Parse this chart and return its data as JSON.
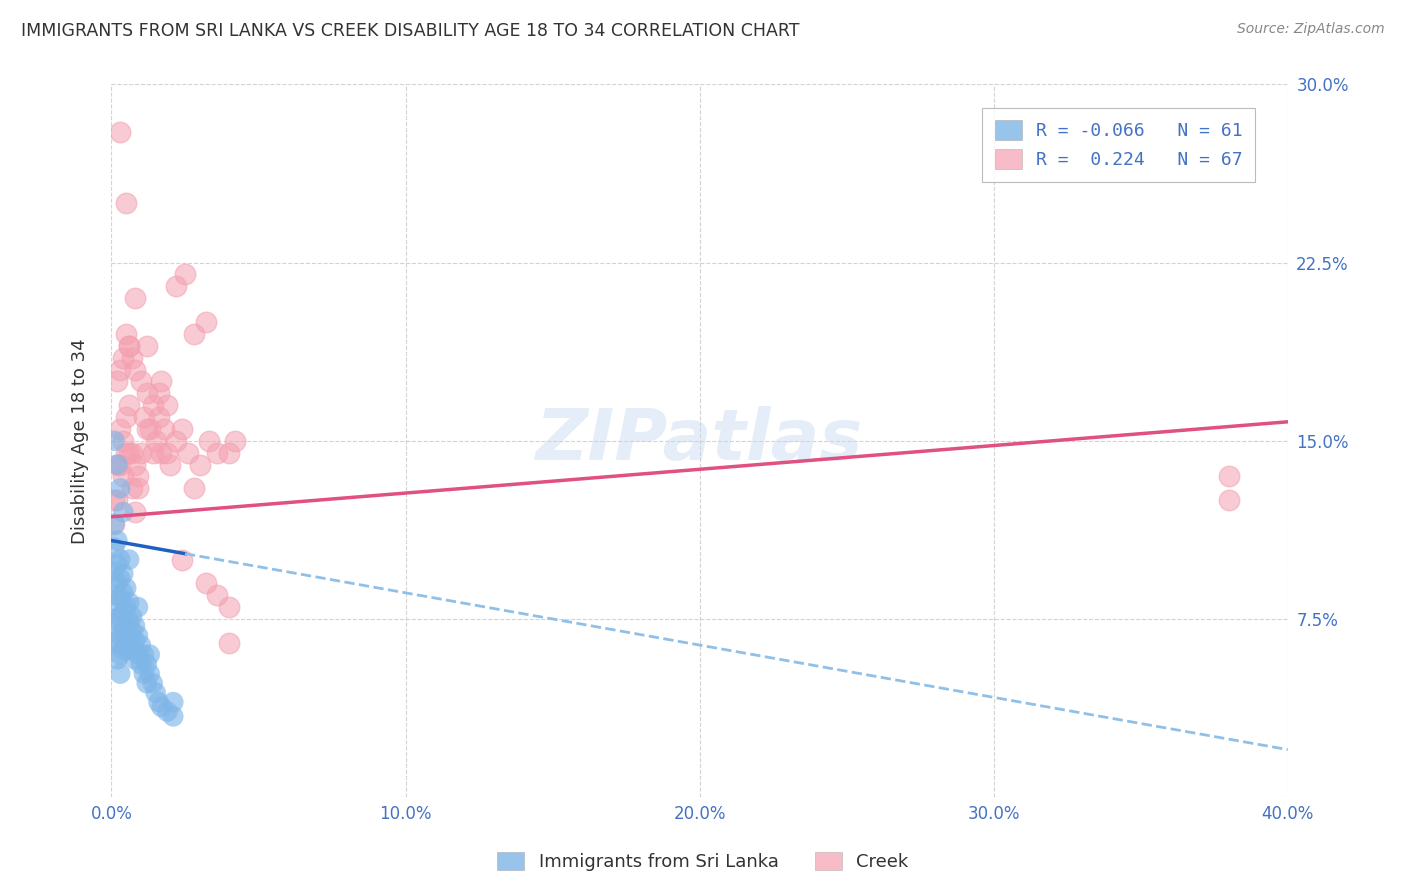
{
  "title": "IMMIGRANTS FROM SRI LANKA VS CREEK DISABILITY AGE 18 TO 34 CORRELATION CHART",
  "source": "Source: ZipAtlas.com",
  "ylabel": "Disability Age 18 to 34",
  "x_label_blue": "Immigrants from Sri Lanka",
  "x_label_pink": "Creek",
  "xlim": [
    0.0,
    0.4
  ],
  "ylim": [
    0.0,
    0.3
  ],
  "xticks": [
    0.0,
    0.1,
    0.2,
    0.3,
    0.4
  ],
  "yticks_right": [
    0.0,
    0.075,
    0.15,
    0.225,
    0.3
  ],
  "ytick_labels_right": [
    "",
    "7.5%",
    "15.0%",
    "22.5%",
    "30.0%"
  ],
  "xtick_labels": [
    "0.0%",
    "10.0%",
    "20.0%",
    "30.0%",
    "40.0%"
  ],
  "R_blue": -0.066,
  "N_blue": 61,
  "R_pink": 0.224,
  "N_pink": 67,
  "dot_color_blue": "#7EB6E8",
  "dot_color_pink": "#F4A0B0",
  "line_color_blue_solid": "#2060C0",
  "line_color_pink": "#E05080",
  "line_color_blue_dash": "#90C0E8",
  "background_color": "#FFFFFF",
  "grid_color": "#C8C8C8",
  "title_color": "#333333",
  "tick_color_blue": "#4472C4",
  "watermark": "ZIPatlas",
  "blue_x": [
    0.001,
    0.001,
    0.001,
    0.001,
    0.001,
    0.001,
    0.002,
    0.002,
    0.002,
    0.002,
    0.002,
    0.002,
    0.002,
    0.003,
    0.003,
    0.003,
    0.003,
    0.003,
    0.003,
    0.003,
    0.004,
    0.004,
    0.004,
    0.004,
    0.004,
    0.005,
    0.005,
    0.005,
    0.005,
    0.006,
    0.006,
    0.006,
    0.007,
    0.007,
    0.007,
    0.008,
    0.008,
    0.008,
    0.009,
    0.009,
    0.01,
    0.01,
    0.011,
    0.011,
    0.012,
    0.012,
    0.013,
    0.014,
    0.015,
    0.016,
    0.017,
    0.019,
    0.021,
    0.001,
    0.002,
    0.003,
    0.004,
    0.006,
    0.009,
    0.013,
    0.021
  ],
  "blue_y": [
    0.115,
    0.105,
    0.095,
    0.085,
    0.075,
    0.065,
    0.108,
    0.098,
    0.09,
    0.082,
    0.074,
    0.066,
    0.058,
    0.1,
    0.092,
    0.084,
    0.076,
    0.068,
    0.06,
    0.052,
    0.094,
    0.086,
    0.078,
    0.07,
    0.062,
    0.088,
    0.08,
    0.072,
    0.064,
    0.082,
    0.074,
    0.066,
    0.076,
    0.07,
    0.062,
    0.072,
    0.066,
    0.058,
    0.068,
    0.06,
    0.064,
    0.056,
    0.06,
    0.052,
    0.056,
    0.048,
    0.052,
    0.048,
    0.044,
    0.04,
    0.038,
    0.036,
    0.034,
    0.15,
    0.14,
    0.13,
    0.12,
    0.1,
    0.08,
    0.06,
    0.04
  ],
  "pink_x": [
    0.001,
    0.001,
    0.002,
    0.002,
    0.003,
    0.003,
    0.004,
    0.004,
    0.005,
    0.005,
    0.006,
    0.006,
    0.007,
    0.007,
    0.008,
    0.008,
    0.009,
    0.01,
    0.011,
    0.012,
    0.013,
    0.014,
    0.015,
    0.016,
    0.017,
    0.018,
    0.019,
    0.02,
    0.022,
    0.024,
    0.026,
    0.028,
    0.03,
    0.033,
    0.036,
    0.04,
    0.042,
    0.38,
    0.002,
    0.003,
    0.004,
    0.005,
    0.006,
    0.007,
    0.008,
    0.009,
    0.01,
    0.012,
    0.014,
    0.016,
    0.019,
    0.022,
    0.025,
    0.028,
    0.032,
    0.036,
    0.04,
    0.003,
    0.005,
    0.008,
    0.012,
    0.017,
    0.024,
    0.032,
    0.04,
    0.38,
    0.006
  ],
  "pink_y": [
    0.125,
    0.115,
    0.14,
    0.125,
    0.155,
    0.14,
    0.15,
    0.135,
    0.16,
    0.145,
    0.165,
    0.145,
    0.145,
    0.13,
    0.14,
    0.12,
    0.13,
    0.145,
    0.16,
    0.155,
    0.155,
    0.145,
    0.15,
    0.16,
    0.145,
    0.155,
    0.145,
    0.14,
    0.15,
    0.155,
    0.145,
    0.13,
    0.14,
    0.15,
    0.145,
    0.145,
    0.15,
    0.135,
    0.175,
    0.18,
    0.185,
    0.195,
    0.19,
    0.185,
    0.18,
    0.135,
    0.175,
    0.17,
    0.165,
    0.17,
    0.165,
    0.215,
    0.22,
    0.195,
    0.2,
    0.085,
    0.065,
    0.28,
    0.25,
    0.21,
    0.19,
    0.175,
    0.1,
    0.09,
    0.08,
    0.125,
    0.19
  ],
  "blue_trend_x0": 0.0,
  "blue_trend_x_solid_end": 0.025,
  "blue_trend_x_dash_end": 0.4,
  "blue_trend_y0": 0.108,
  "blue_trend_y_end": 0.02,
  "pink_trend_x0": 0.0,
  "pink_trend_x_end": 0.4,
  "pink_trend_y0": 0.118,
  "pink_trend_y_end": 0.158
}
